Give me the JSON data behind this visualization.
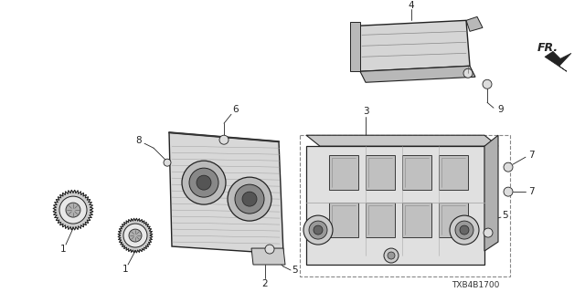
{
  "bg_color": "#ffffff",
  "fig_width": 6.4,
  "fig_height": 3.2,
  "dpi": 100,
  "diagram_id": "TXB4B1700",
  "line_color": "#222222",
  "label_fontsize": 7.5,
  "id_fontsize": 6.5
}
